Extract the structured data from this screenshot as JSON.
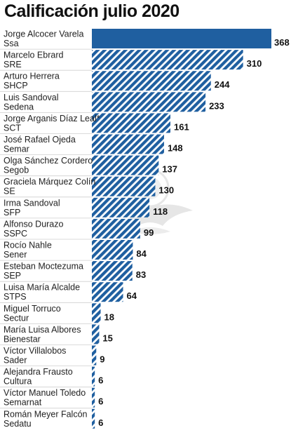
{
  "colors": {
    "bar_solid": "#1f5fa0",
    "bar_stripe": "#1f5fa0",
    "stripe_bg": "#ffffff",
    "divider": "#cfcfcf",
    "watermark": "#e6e6e6"
  },
  "watermark_icon": "eagle-seal-icon",
  "chart_data": {
    "type": "bar",
    "orientation": "horizontal",
    "title": "Calificación julio 2020",
    "xlim": [
      0,
      368
    ],
    "grid": false,
    "legend": "none",
    "categories": [
      [
        "Jorge Alcocer Varela",
        "Ssa"
      ],
      [
        "Marcelo Ebrard",
        "SRE"
      ],
      [
        "Arturo Herrera",
        "SHCP"
      ],
      [
        "Luis Sandoval",
        "Sedena"
      ],
      [
        "Jorge Arganis Díaz Leal*",
        "SCT"
      ],
      [
        "José Rafael Ojeda",
        "Semar"
      ],
      [
        "Olga Sánchez Cordero",
        "Segob"
      ],
      [
        "Graciela Márquez Colín",
        "SE"
      ],
      [
        "Irma Sandoval",
        "SFP"
      ],
      [
        "Alfonso Durazo",
        "SSPC"
      ],
      [
        "Rocío Nahle",
        "Sener"
      ],
      [
        "Esteban Moctezuma",
        "SEP"
      ],
      [
        "Luisa María Alcalde",
        "STPS"
      ],
      [
        "Miguel Torruco",
        "Sectur"
      ],
      [
        "María Luisa Albores",
        "Bienestar"
      ],
      [
        "Víctor Villalobos",
        "Sader"
      ],
      [
        "Alejandra Frausto",
        "Cultura"
      ],
      [
        "Víctor Manuel Toledo",
        "Semarnat"
      ],
      [
        "Román Meyer Falcón",
        "Sedatu"
      ]
    ],
    "values": [
      368,
      310,
      244,
      233,
      161,
      148,
      137,
      130,
      118,
      99,
      84,
      83,
      64,
      18,
      15,
      9,
      6,
      6,
      6
    ],
    "highlight_index": 0
  }
}
